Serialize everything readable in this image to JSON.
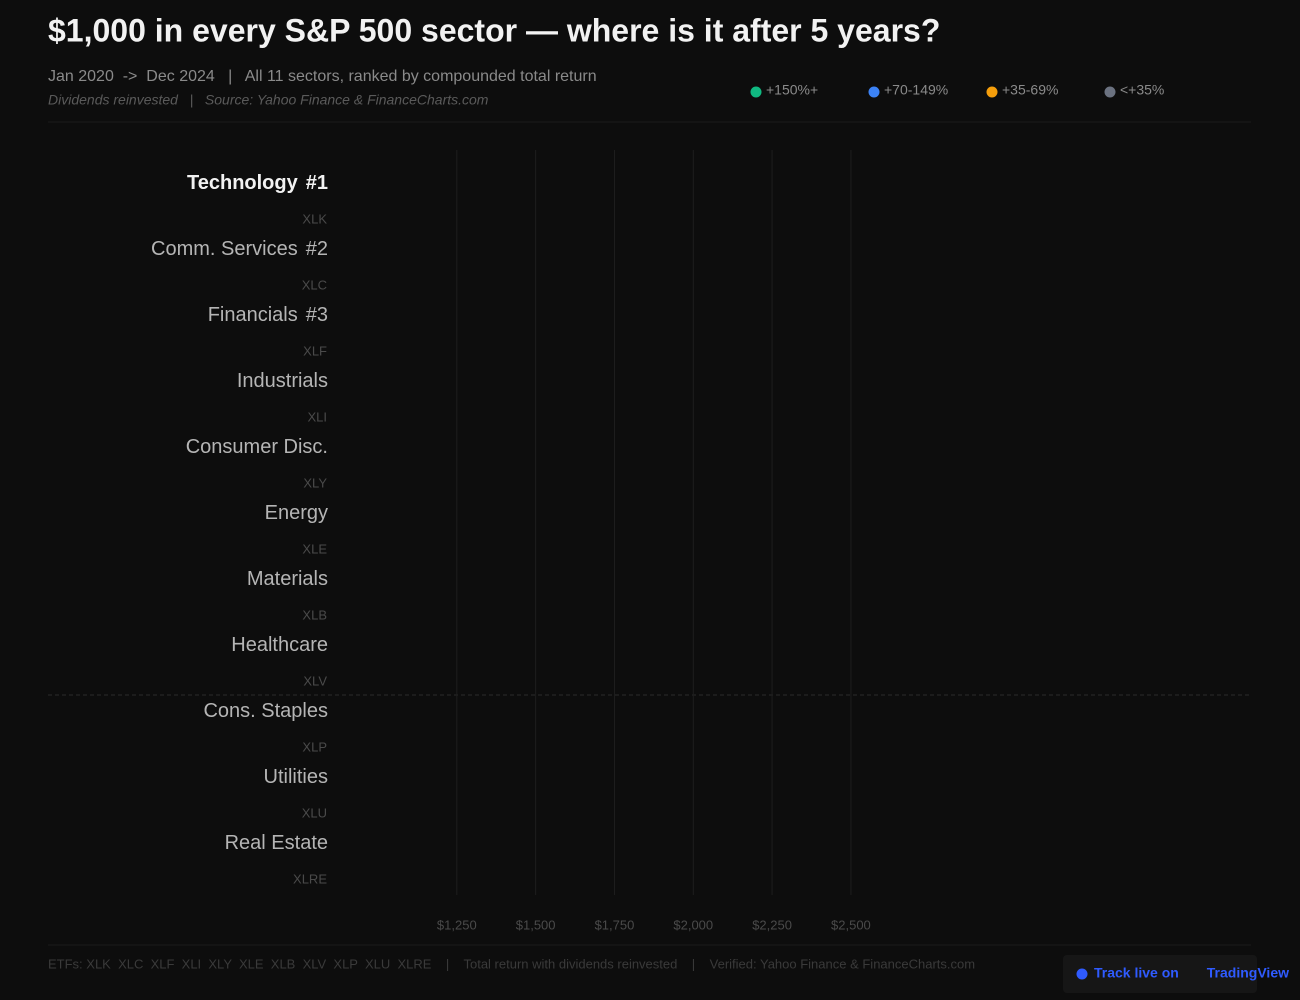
{
  "chart_data": {
    "type": "bar",
    "orientation": "horizontal",
    "title": "$1,000 in every S&P 500 sector — where is it after 5 years?",
    "subtitle": "Jan 2020  ->  Dec 2024   |   All 11 sectors, ranked by compounded total return",
    "note": "Dividends reinvested   |   Source: Yahoo Finance & FinanceCharts.com",
    "categories": [
      "Technology",
      "Comm. Services",
      "Financials",
      "Industrials",
      "Consumer Disc.",
      "Energy",
      "Materials",
      "Healthcare",
      "Cons. Staples",
      "Utilities",
      "Real Estate"
    ],
    "ranks": [
      "#1",
      "#2",
      "#3",
      null,
      null,
      null,
      null,
      null,
      null,
      null,
      null
    ],
    "tickers": [
      "XLK",
      "XLC",
      "XLF",
      "XLI",
      "XLY",
      "XLE",
      "XLB",
      "XLV",
      "XLP",
      "XLU",
      "XLRE"
    ],
    "legend": [
      {
        "name": "+150%+",
        "color": "#10b981"
      },
      {
        "name": "+70-149%",
        "color": "#3b82f6"
      },
      {
        "name": "+35-69%",
        "color": "#f59e0b"
      },
      {
        "name": "<+35%",
        "color": "#6b7280"
      }
    ],
    "xlim": [
      1000,
      3750
    ],
    "xticks": [
      {
        "value": 1250,
        "label": "$1,250"
      },
      {
        "value": 1500,
        "label": "$1,500"
      },
      {
        "value": 1750,
        "label": "$1,750"
      },
      {
        "value": 2000,
        "label": "$2,000"
      },
      {
        "value": 2250,
        "label": "$2,250"
      },
      {
        "value": 2500,
        "label": "$2,500"
      }
    ],
    "grid": true,
    "footer": "ETFs: XLK  XLC  XLF  XLI  XLY  XLE  XLB  XLV  XLP  XLU  XLRE    |    Total return with dividends reinvested    |    Verified: Yahoo Finance & FinanceCharts.com",
    "button": {
      "prefix": "Track live on",
      "brand": "TradingView"
    }
  }
}
